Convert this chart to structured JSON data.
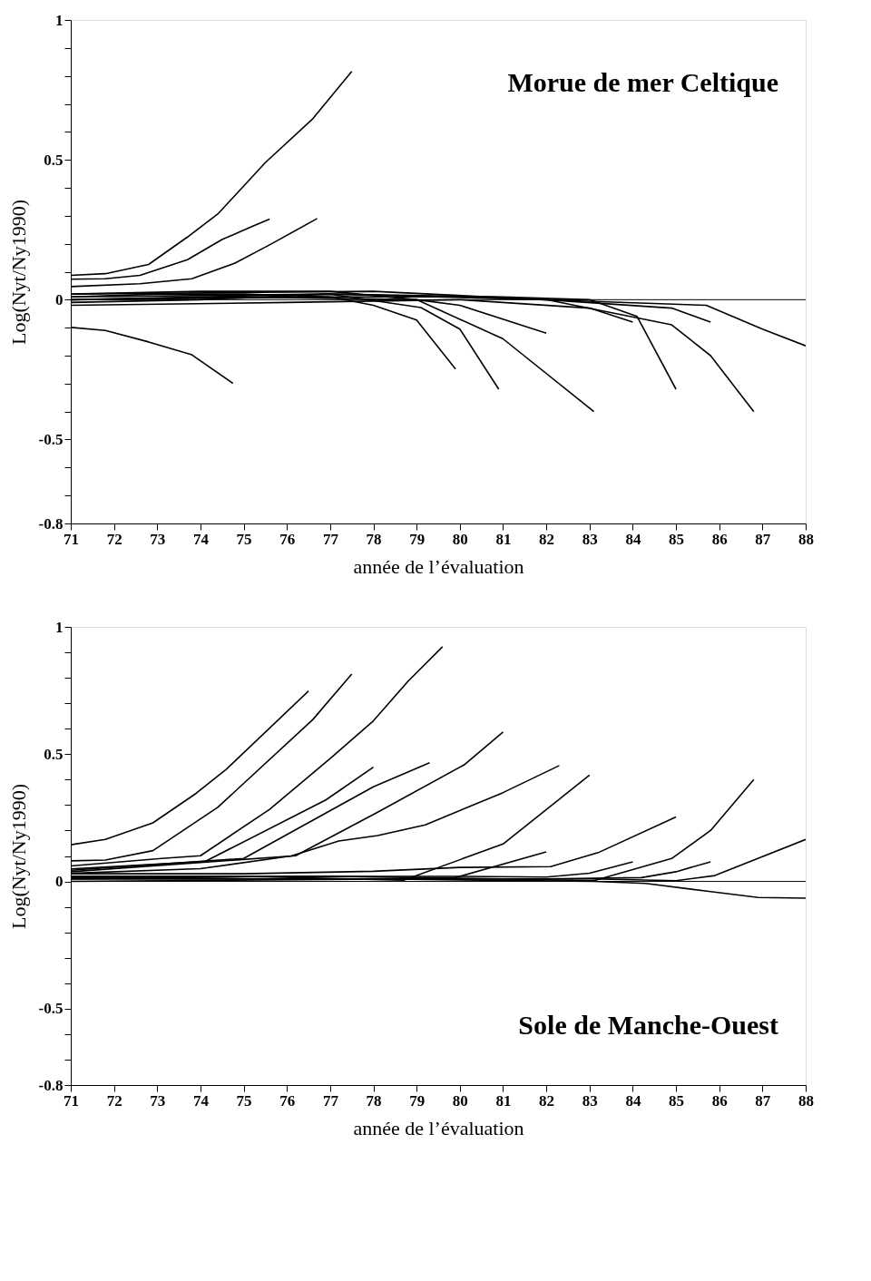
{
  "chart_data": [
    {
      "type": "line",
      "xlabel": "année de l’évaluation",
      "ylabel": "Log(Nyt/Ny1990)",
      "annotations": [
        "Morue de mer Celtique"
      ],
      "xlim": [
        71,
        88
      ],
      "xticks": [
        71,
        72,
        73,
        74,
        75,
        76,
        77,
        78,
        79,
        80,
        81,
        82,
        83,
        84,
        85,
        86,
        87,
        88
      ],
      "ylim": [
        -0.8,
        1
      ],
      "yticks": [
        1,
        {
          "value": 0.9,
          "label": null
        },
        {
          "value": 0.8,
          "label": null
        },
        {
          "value": 0.7,
          "label": null
        },
        {
          "value": 0.6,
          "label": null
        },
        0.5,
        {
          "value": 0.4,
          "label": null
        },
        {
          "value": 0.3,
          "label": null
        },
        {
          "value": 0.2,
          "label": null
        },
        {
          "value": 0.1,
          "label": null
        },
        0,
        {
          "value": -0.1,
          "label": null
        },
        {
          "value": -0.2,
          "label": null
        },
        {
          "value": -0.3,
          "label": null
        },
        {
          "value": -0.4,
          "label": null
        },
        -0.5,
        {
          "value": -0.6,
          "label": null
        },
        {
          "value": -0.7,
          "label": null
        },
        -0.8
      ],
      "ref_lines": [
        {
          "axis": "y",
          "value": 0,
          "color": "#000000"
        }
      ],
      "series": [
        {
          "color": "#000000",
          "x": [
            71,
            71.8,
            72.8,
            73.7,
            74.4,
            75.5,
            76.6,
            77.5
          ],
          "values": [
            0.087,
            0.093,
            0.126,
            0.224,
            0.306,
            0.49,
            0.647,
            0.816
          ]
        },
        {
          "color": "#000000",
          "x": [
            71,
            71.8,
            72.6,
            73.7,
            74.5,
            75.2,
            75.6
          ],
          "values": [
            0.073,
            0.075,
            0.087,
            0.143,
            0.215,
            0.262,
            0.288
          ]
        },
        {
          "color": "#000000",
          "x": [
            71,
            72.6,
            73.8,
            74.8,
            75.6,
            76.7
          ],
          "values": [
            0.047,
            0.057,
            0.075,
            0.131,
            0.196,
            0.29
          ]
        },
        {
          "color": "#000000",
          "x": [
            71,
            71.8,
            72.8,
            73.8,
            74.75
          ],
          "values": [
            -0.099,
            -0.11,
            -0.151,
            -0.197,
            -0.299
          ]
        },
        {
          "color": "#000000",
          "x": [
            71,
            73,
            75,
            77,
            78,
            79,
            79.9
          ],
          "values": [
            0.01,
            0.02,
            0.02,
            0.01,
            -0.02,
            -0.073,
            -0.248
          ]
        },
        {
          "color": "#000000",
          "x": [
            71,
            74,
            77,
            79.1,
            80,
            80.9
          ],
          "values": [
            -0.01,
            0.0,
            0.02,
            -0.028,
            -0.105,
            -0.32
          ]
        },
        {
          "color": "#000000",
          "x": [
            71,
            74,
            77,
            79,
            81,
            83.1
          ],
          "values": [
            0.02,
            0.03,
            0.03,
            0.0,
            -0.14,
            -0.4
          ]
        },
        {
          "color": "#000000",
          "x": [
            71,
            75,
            79,
            80,
            82
          ],
          "values": [
            0.0,
            0.01,
            0.0,
            -0.02,
            -0.12
          ]
        },
        {
          "color": "#000000",
          "x": [
            71,
            76,
            80,
            83,
            84
          ],
          "values": [
            -0.02,
            -0.01,
            0.0,
            -0.03,
            -0.08
          ]
        },
        {
          "color": "#000000",
          "x": [
            71,
            77,
            81,
            83,
            84.1,
            85
          ],
          "values": [
            0.0,
            0.02,
            0.01,
            0.0,
            -0.06,
            -0.32
          ]
        },
        {
          "color": "#000000",
          "x": [
            71,
            77,
            82,
            84.9,
            85.8,
            86.8
          ],
          "values": [
            0.01,
            0.02,
            0.0,
            -0.09,
            -0.2,
            -0.4
          ]
        },
        {
          "color": "#000000",
          "x": [
            71,
            78,
            82,
            84.9,
            85.8
          ],
          "values": [
            0.02,
            0.03,
            0.0,
            -0.03,
            -0.08
          ]
        },
        {
          "color": "#000000",
          "x": [
            71,
            77,
            80,
            85.7,
            87,
            88
          ],
          "values": [
            0.0,
            0.01,
            0.01,
            -0.02,
            -0.105,
            -0.165
          ]
        }
      ]
    },
    {
      "type": "line",
      "xlabel": "année de l’évaluation",
      "ylabel": "Log(Nyt/Ny1990)",
      "annotations": [
        "Sole de Manche-Ouest"
      ],
      "xlim": [
        71,
        88
      ],
      "xticks": [
        71,
        72,
        73,
        74,
        75,
        76,
        77,
        78,
        79,
        80,
        81,
        82,
        83,
        84,
        85,
        86,
        87,
        88
      ],
      "ylim": [
        -0.8,
        1
      ],
      "yticks": [
        1,
        {
          "value": 0.9,
          "label": null
        },
        {
          "value": 0.8,
          "label": null
        },
        {
          "value": 0.7,
          "label": null
        },
        {
          "value": 0.6,
          "label": null
        },
        0.5,
        {
          "value": 0.4,
          "label": null
        },
        {
          "value": 0.3,
          "label": null
        },
        {
          "value": 0.2,
          "label": null
        },
        {
          "value": 0.1,
          "label": null
        },
        0,
        {
          "value": -0.1,
          "label": null
        },
        {
          "value": -0.2,
          "label": null
        },
        {
          "value": -0.3,
          "label": null
        },
        {
          "value": -0.4,
          "label": null
        },
        -0.5,
        {
          "value": -0.6,
          "label": null
        },
        {
          "value": -0.7,
          "label": null
        },
        -0.8
      ],
      "ref_lines": [
        {
          "axis": "y",
          "value": 0,
          "color": "#000000"
        }
      ],
      "series": [
        {
          "color": "#000000",
          "x": [
            71,
            71.8,
            72.9,
            73.9,
            74.6,
            76.5
          ],
          "values": [
            0.144,
            0.165,
            0.23,
            0.346,
            0.441,
            0.748
          ]
        },
        {
          "color": "#000000",
          "x": [
            71,
            71.8,
            72.9,
            74.4,
            76.6,
            77.5
          ],
          "values": [
            0.081,
            0.084,
            0.121,
            0.291,
            0.636,
            0.815
          ]
        },
        {
          "color": "#000000",
          "x": [
            71,
            73.1,
            74,
            75.6,
            77,
            78,
            78.8,
            79.6
          ],
          "values": [
            0.061,
            0.09,
            0.101,
            0.283,
            0.483,
            0.631,
            0.786,
            0.922
          ]
        },
        {
          "color": "#000000",
          "x": [
            71,
            74.1,
            76.9,
            78
          ],
          "values": [
            0.049,
            0.078,
            0.32,
            0.449
          ]
        },
        {
          "color": "#000000",
          "x": [
            71,
            75,
            78,
            79.3
          ],
          "values": [
            0.044,
            0.09,
            0.372,
            0.466
          ]
        },
        {
          "color": "#000000",
          "x": [
            71,
            76.2,
            78.1,
            80.1,
            81
          ],
          "values": [
            0.038,
            0.101,
            0.272,
            0.458,
            0.587
          ]
        },
        {
          "color": "#000000",
          "x": [
            71,
            74,
            76.1,
            77.2,
            78.1,
            79.2,
            81,
            82.3
          ],
          "values": [
            0.032,
            0.05,
            0.1,
            0.159,
            0.18,
            0.222,
            0.349,
            0.455
          ]
        },
        {
          "color": "#000000",
          "x": [
            71,
            75,
            78.7,
            81,
            83
          ],
          "values": [
            0.02,
            0.02,
            0.005,
            0.147,
            0.418
          ]
        },
        {
          "color": "#000000",
          "x": [
            71,
            75,
            79,
            79.9,
            82
          ],
          "values": [
            0.015,
            0.01,
            0.01,
            0.015,
            0.116
          ]
        },
        {
          "color": "#000000",
          "x": [
            71,
            75,
            78,
            80,
            82.1,
            83.2,
            85
          ],
          "values": [
            0.03,
            0.03,
            0.04,
            0.055,
            0.058,
            0.113,
            0.253
          ]
        },
        {
          "color": "#000000",
          "x": [
            71,
            76,
            80,
            82,
            83,
            84
          ],
          "values": [
            0.01,
            0.02,
            0.02,
            0.017,
            0.032,
            0.077
          ]
        },
        {
          "color": "#000000",
          "x": [
            71,
            77,
            81,
            83.1,
            84.9,
            85.8,
            86.8
          ],
          "values": [
            0.02,
            0.02,
            0.01,
            0.003,
            0.09,
            0.2,
            0.4
          ]
        },
        {
          "color": "#000000",
          "x": [
            71,
            78,
            82,
            84.2,
            85,
            85.8
          ],
          "values": [
            0.01,
            0.01,
            0.01,
            0.015,
            0.038,
            0.077
          ]
        },
        {
          "color": "#000000",
          "x": [
            71,
            79,
            83,
            85,
            85.9,
            88
          ],
          "values": [
            0.0,
            0.01,
            0.01,
            0.003,
            0.023,
            0.165
          ]
        },
        {
          "color": "#000000",
          "x": [
            71,
            78,
            83.1,
            84.3,
            85.8,
            86.9,
            88
          ],
          "values": [
            0.01,
            0.01,
            0.0,
            -0.008,
            -0.04,
            -0.063,
            -0.066
          ]
        }
      ]
    }
  ]
}
